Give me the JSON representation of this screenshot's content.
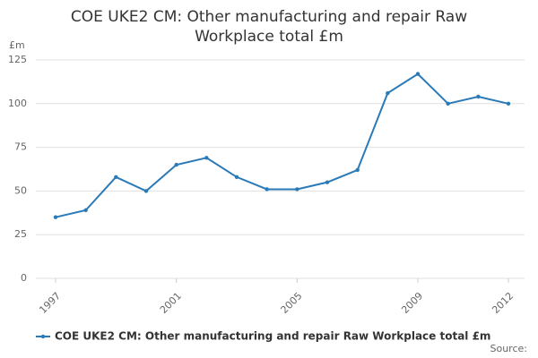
{
  "chart_data": {
    "type": "line",
    "title": "COE UKE2 CM: Other manufacturing and repair Raw Workplace total £m",
    "y_label": "£m",
    "x": [
      1997,
      1998,
      1999,
      2000,
      2001,
      2002,
      2003,
      2004,
      2005,
      2006,
      2007,
      2008,
      2009,
      2010,
      2011,
      2012
    ],
    "series": [
      {
        "name": "COE UKE2 CM: Other manufacturing and repair Raw Workplace total £m",
        "color": "#2a7ab8",
        "values": [
          35,
          39,
          58,
          50,
          65,
          69,
          58,
          51,
          51,
          55,
          62,
          106,
          117,
          100,
          104,
          100
        ]
      }
    ],
    "xlim": [
      1997,
      2012
    ],
    "xticks": [
      1997,
      2001,
      2005,
      2009,
      2012
    ],
    "ylim": [
      0,
      125
    ],
    "yticks": [
      0,
      25,
      50,
      75,
      100,
      125
    ],
    "grid": true,
    "legend": "bottom",
    "source": "Source:"
  }
}
